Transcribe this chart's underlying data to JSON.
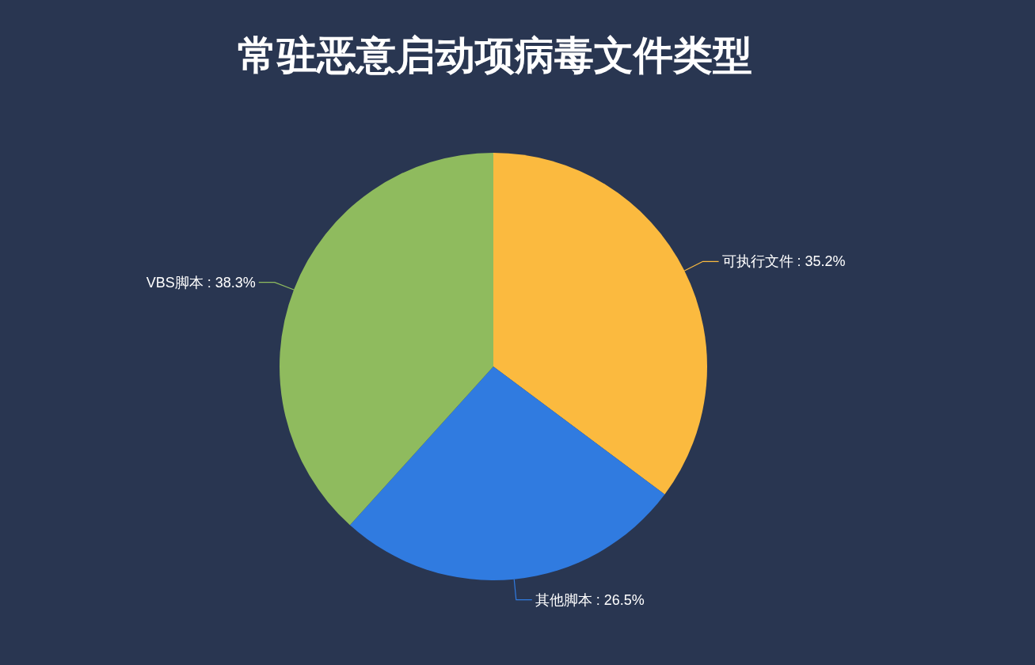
{
  "chart_data": {
    "type": "pie",
    "title": "常驻恶意启动项病毒文件类型",
    "categories": [
      "可执行文件",
      "其他脚本",
      "VBS脚本"
    ],
    "values": [
      35.2,
      26.5,
      38.3
    ],
    "colors": [
      "#fbba3f",
      "#307be0",
      "#8fbb5e"
    ],
    "value_labels": [
      ": 35.2%",
      ": 26.5%",
      ": 38.3%"
    ]
  }
}
